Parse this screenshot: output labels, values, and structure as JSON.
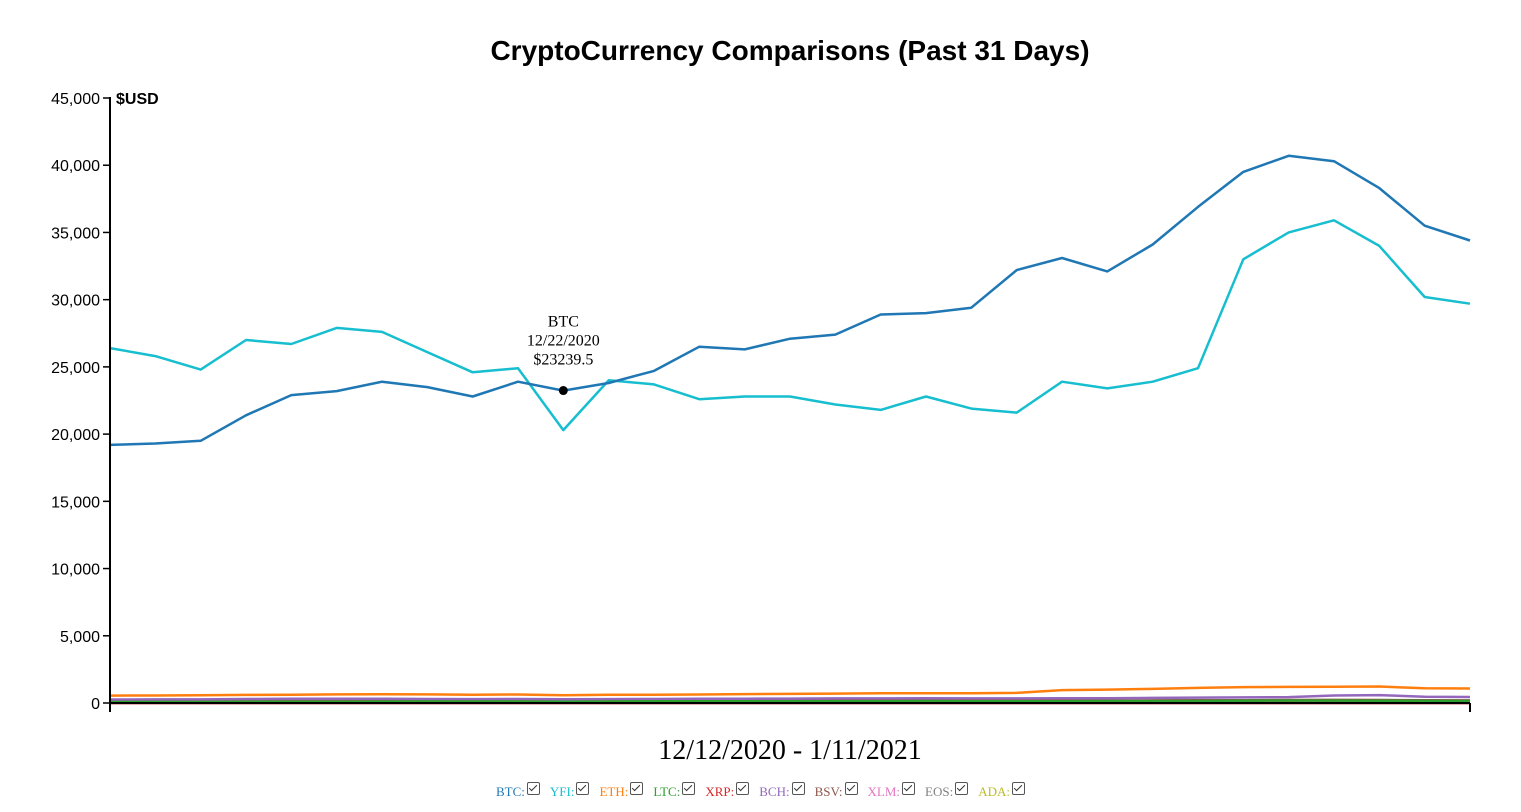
{
  "chart_data": {
    "type": "line",
    "title": "CryptoCurrency Comparisons (Past 31 Days)",
    "ylabel": "$USD",
    "xlabel": "12/12/2020 - 1/11/2021",
    "ylim": [
      0,
      45000
    ],
    "yticks": [
      0,
      5000,
      10000,
      15000,
      20000,
      25000,
      30000,
      35000,
      40000,
      45000
    ],
    "ytick_labels": [
      "0",
      "5,000",
      "10,000",
      "15,000",
      "20,000",
      "25,000",
      "30,000",
      "35,000",
      "40,000",
      "45,000"
    ],
    "x": [
      "12/12/2020",
      "12/13/2020",
      "12/14/2020",
      "12/15/2020",
      "12/16/2020",
      "12/17/2020",
      "12/18/2020",
      "12/19/2020",
      "12/20/2020",
      "12/21/2020",
      "12/22/2020",
      "12/23/2020",
      "12/24/2020",
      "12/25/2020",
      "12/26/2020",
      "12/27/2020",
      "12/28/2020",
      "12/29/2020",
      "12/30/2020",
      "12/31/2020",
      "1/1/2021",
      "1/2/2021",
      "1/3/2021",
      "1/4/2021",
      "1/5/2021",
      "1/6/2021",
      "1/7/2021",
      "1/8/2021",
      "1/9/2021",
      "1/10/2021",
      "1/11/2021"
    ],
    "series": [
      {
        "name": "BTC",
        "color": "#1f77b4",
        "values": [
          19200,
          19300,
          19500,
          21400,
          22900,
          23200,
          23900,
          23500,
          22800,
          23900,
          23239.5,
          23800,
          24700,
          26500,
          26300,
          27100,
          27400,
          28900,
          29000,
          29400,
          32200,
          33100,
          32100,
          34100,
          36900,
          39500,
          40700,
          40300,
          38300,
          35500,
          34400
        ]
      },
      {
        "name": "YFI",
        "color": "#17becf",
        "values": [
          26400,
          25800,
          24800,
          27000,
          26700,
          27900,
          27600,
          26100,
          24600,
          24900,
          20300,
          24000,
          23700,
          22600,
          22800,
          22800,
          22200,
          21800,
          22800,
          21900,
          21600,
          23900,
          23400,
          23900,
          24900,
          33000,
          35000,
          35900,
          34000,
          30200,
          29700
        ]
      },
      {
        "name": "ETH",
        "color": "#ff7f0e",
        "values": [
          550,
          560,
          570,
          600,
          620,
          640,
          650,
          640,
          620,
          630,
          580,
          610,
          620,
          630,
          660,
          680,
          700,
          720,
          720,
          730,
          750,
          960,
          1000,
          1050,
          1120,
          1180,
          1200,
          1210,
          1230,
          1090,
          1080
        ]
      },
      {
        "name": "LTC",
        "color": "#2ca02c",
        "values": [
          70,
          75,
          76,
          90,
          95,
          100,
          105,
          110,
          110,
          115,
          100,
          110,
          125,
          130,
          130,
          128,
          125,
          130,
          140,
          130,
          125,
          130,
          140,
          140,
          150,
          160,
          175,
          180,
          170,
          155,
          150
        ]
      },
      {
        "name": "XRP",
        "color": "#d62728",
        "values": [
          0.5,
          0.5,
          0.5,
          0.6,
          0.6,
          0.6,
          0.6,
          0.5,
          0.5,
          0.5,
          0.3,
          0.3,
          0.2,
          0.3,
          0.3,
          0.3,
          0.2,
          0.2,
          0.2,
          0.2,
          0.2,
          0.2,
          0.2,
          0.2,
          0.2,
          0.2,
          0.3,
          0.3,
          0.3,
          0.3,
          0.3
        ]
      },
      {
        "name": "BCH",
        "color": "#9467bd",
        "values": [
          260,
          265,
          270,
          300,
          310,
          320,
          320,
          300,
          290,
          300,
          280,
          290,
          300,
          310,
          320,
          330,
          340,
          340,
          350,
          340,
          340,
          350,
          360,
          380,
          400,
          420,
          440,
          560,
          590,
          460,
          450
        ]
      },
      {
        "name": "BSV",
        "color": "#8c564b",
        "values": [
          165,
          165,
          165,
          170,
          170,
          170,
          170,
          165,
          165,
          165,
          160,
          160,
          165,
          165,
          165,
          165,
          165,
          170,
          170,
          170,
          175,
          180,
          180,
          190,
          200,
          210,
          220,
          230,
          220,
          200,
          195
        ]
      },
      {
        "name": "XLM",
        "color": "#e377c2",
        "values": [
          0.15,
          0.15,
          0.15,
          0.16,
          0.16,
          0.17,
          0.17,
          0.16,
          0.16,
          0.16,
          0.13,
          0.13,
          0.13,
          0.13,
          0.13,
          0.13,
          0.13,
          0.13,
          0.13,
          0.13,
          0.13,
          0.14,
          0.15,
          0.18,
          0.22,
          0.28,
          0.3,
          0.31,
          0.3,
          0.28,
          0.27
        ]
      },
      {
        "name": "EOS",
        "color": "#7f7f7f",
        "values": [
          2.6,
          2.6,
          2.6,
          2.7,
          2.7,
          2.8,
          2.8,
          2.7,
          2.6,
          2.6,
          2.4,
          2.5,
          2.6,
          2.6,
          2.6,
          2.6,
          2.6,
          2.6,
          2.6,
          2.6,
          2.6,
          2.7,
          2.7,
          2.8,
          2.9,
          3.0,
          3.1,
          3.2,
          3.1,
          2.9,
          2.8
        ]
      },
      {
        "name": "ADA",
        "color": "#bcbd22",
        "values": [
          0.15,
          0.15,
          0.15,
          0.16,
          0.16,
          0.17,
          0.17,
          0.16,
          0.16,
          0.16,
          0.14,
          0.15,
          0.16,
          0.17,
          0.17,
          0.18,
          0.18,
          0.18,
          0.18,
          0.18,
          0.18,
          0.18,
          0.2,
          0.22,
          0.28,
          0.33,
          0.35,
          0.36,
          0.34,
          0.31,
          0.3
        ]
      }
    ],
    "tooltip": {
      "series": "BTC",
      "date": "12/22/2020",
      "value_text": "$23239.5",
      "value": 23239.5
    },
    "legend_position": "bottom-center",
    "grid": false
  }
}
